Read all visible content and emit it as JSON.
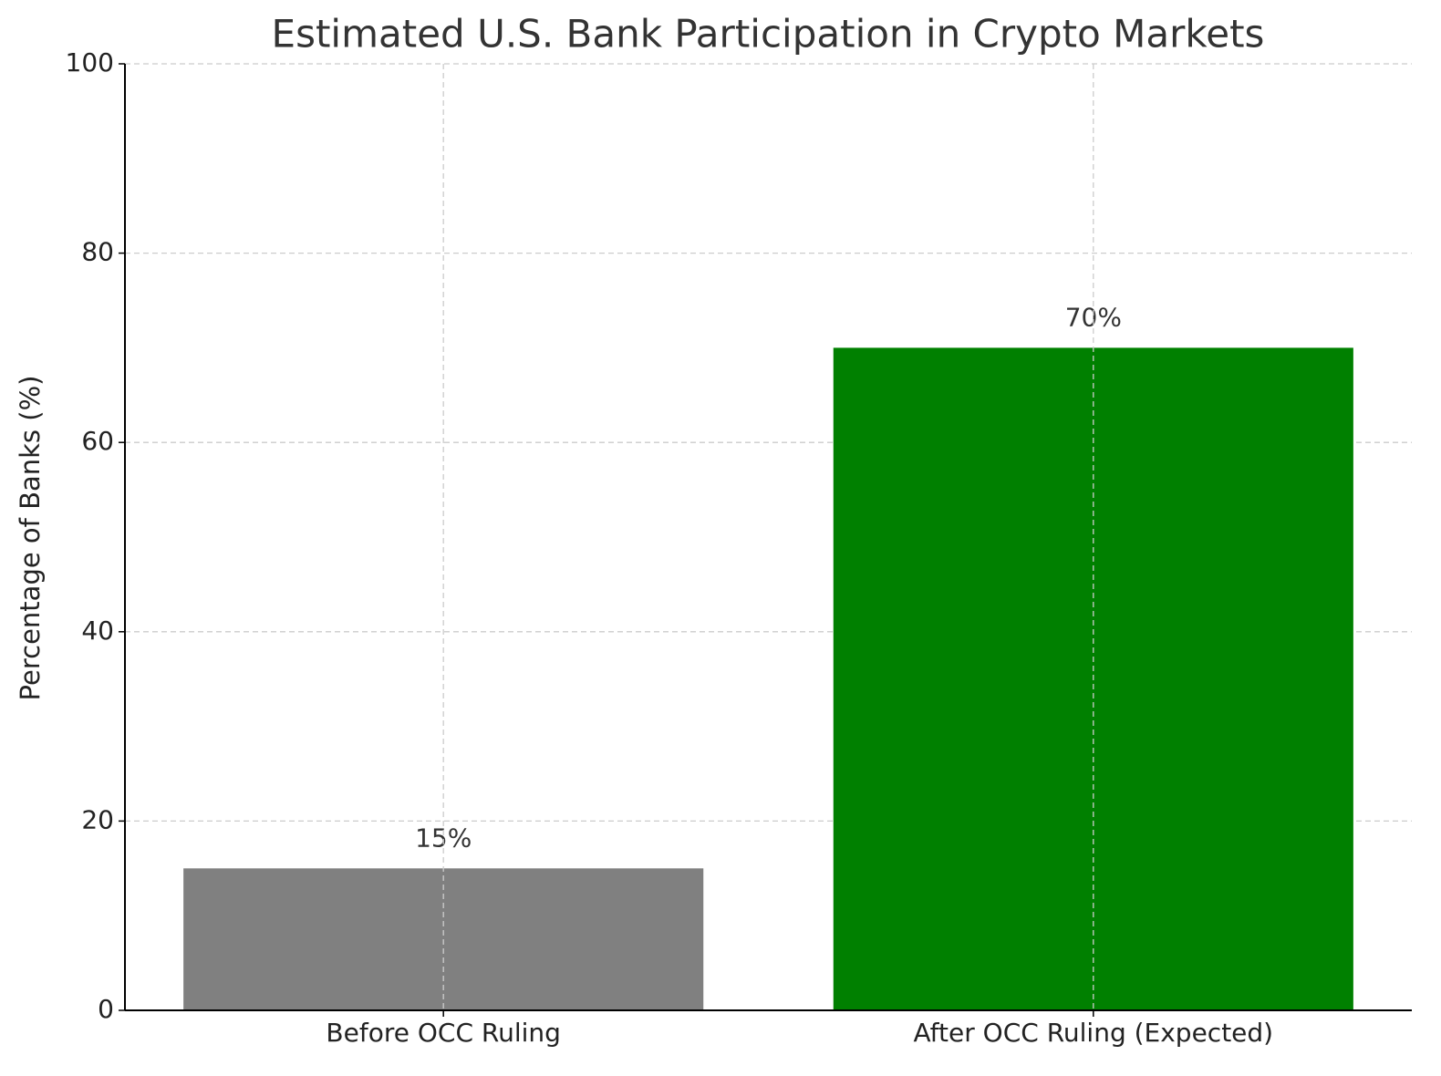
{
  "chart_data": {
    "type": "bar",
    "title": "Estimated U.S. Bank Participation in Crypto Markets",
    "y_label": "Percentage of Banks (%)",
    "categories": [
      "Before OCC Ruling",
      "After OCC Ruling (Expected)"
    ],
    "values": [
      15,
      70
    ],
    "value_labels": [
      "15%",
      "70%"
    ],
    "colors": [
      "#808080",
      "#008000"
    ],
    "ylim": [
      0,
      100
    ],
    "yticks": [
      0,
      20,
      40,
      60,
      80,
      100
    ],
    "grid": true
  }
}
